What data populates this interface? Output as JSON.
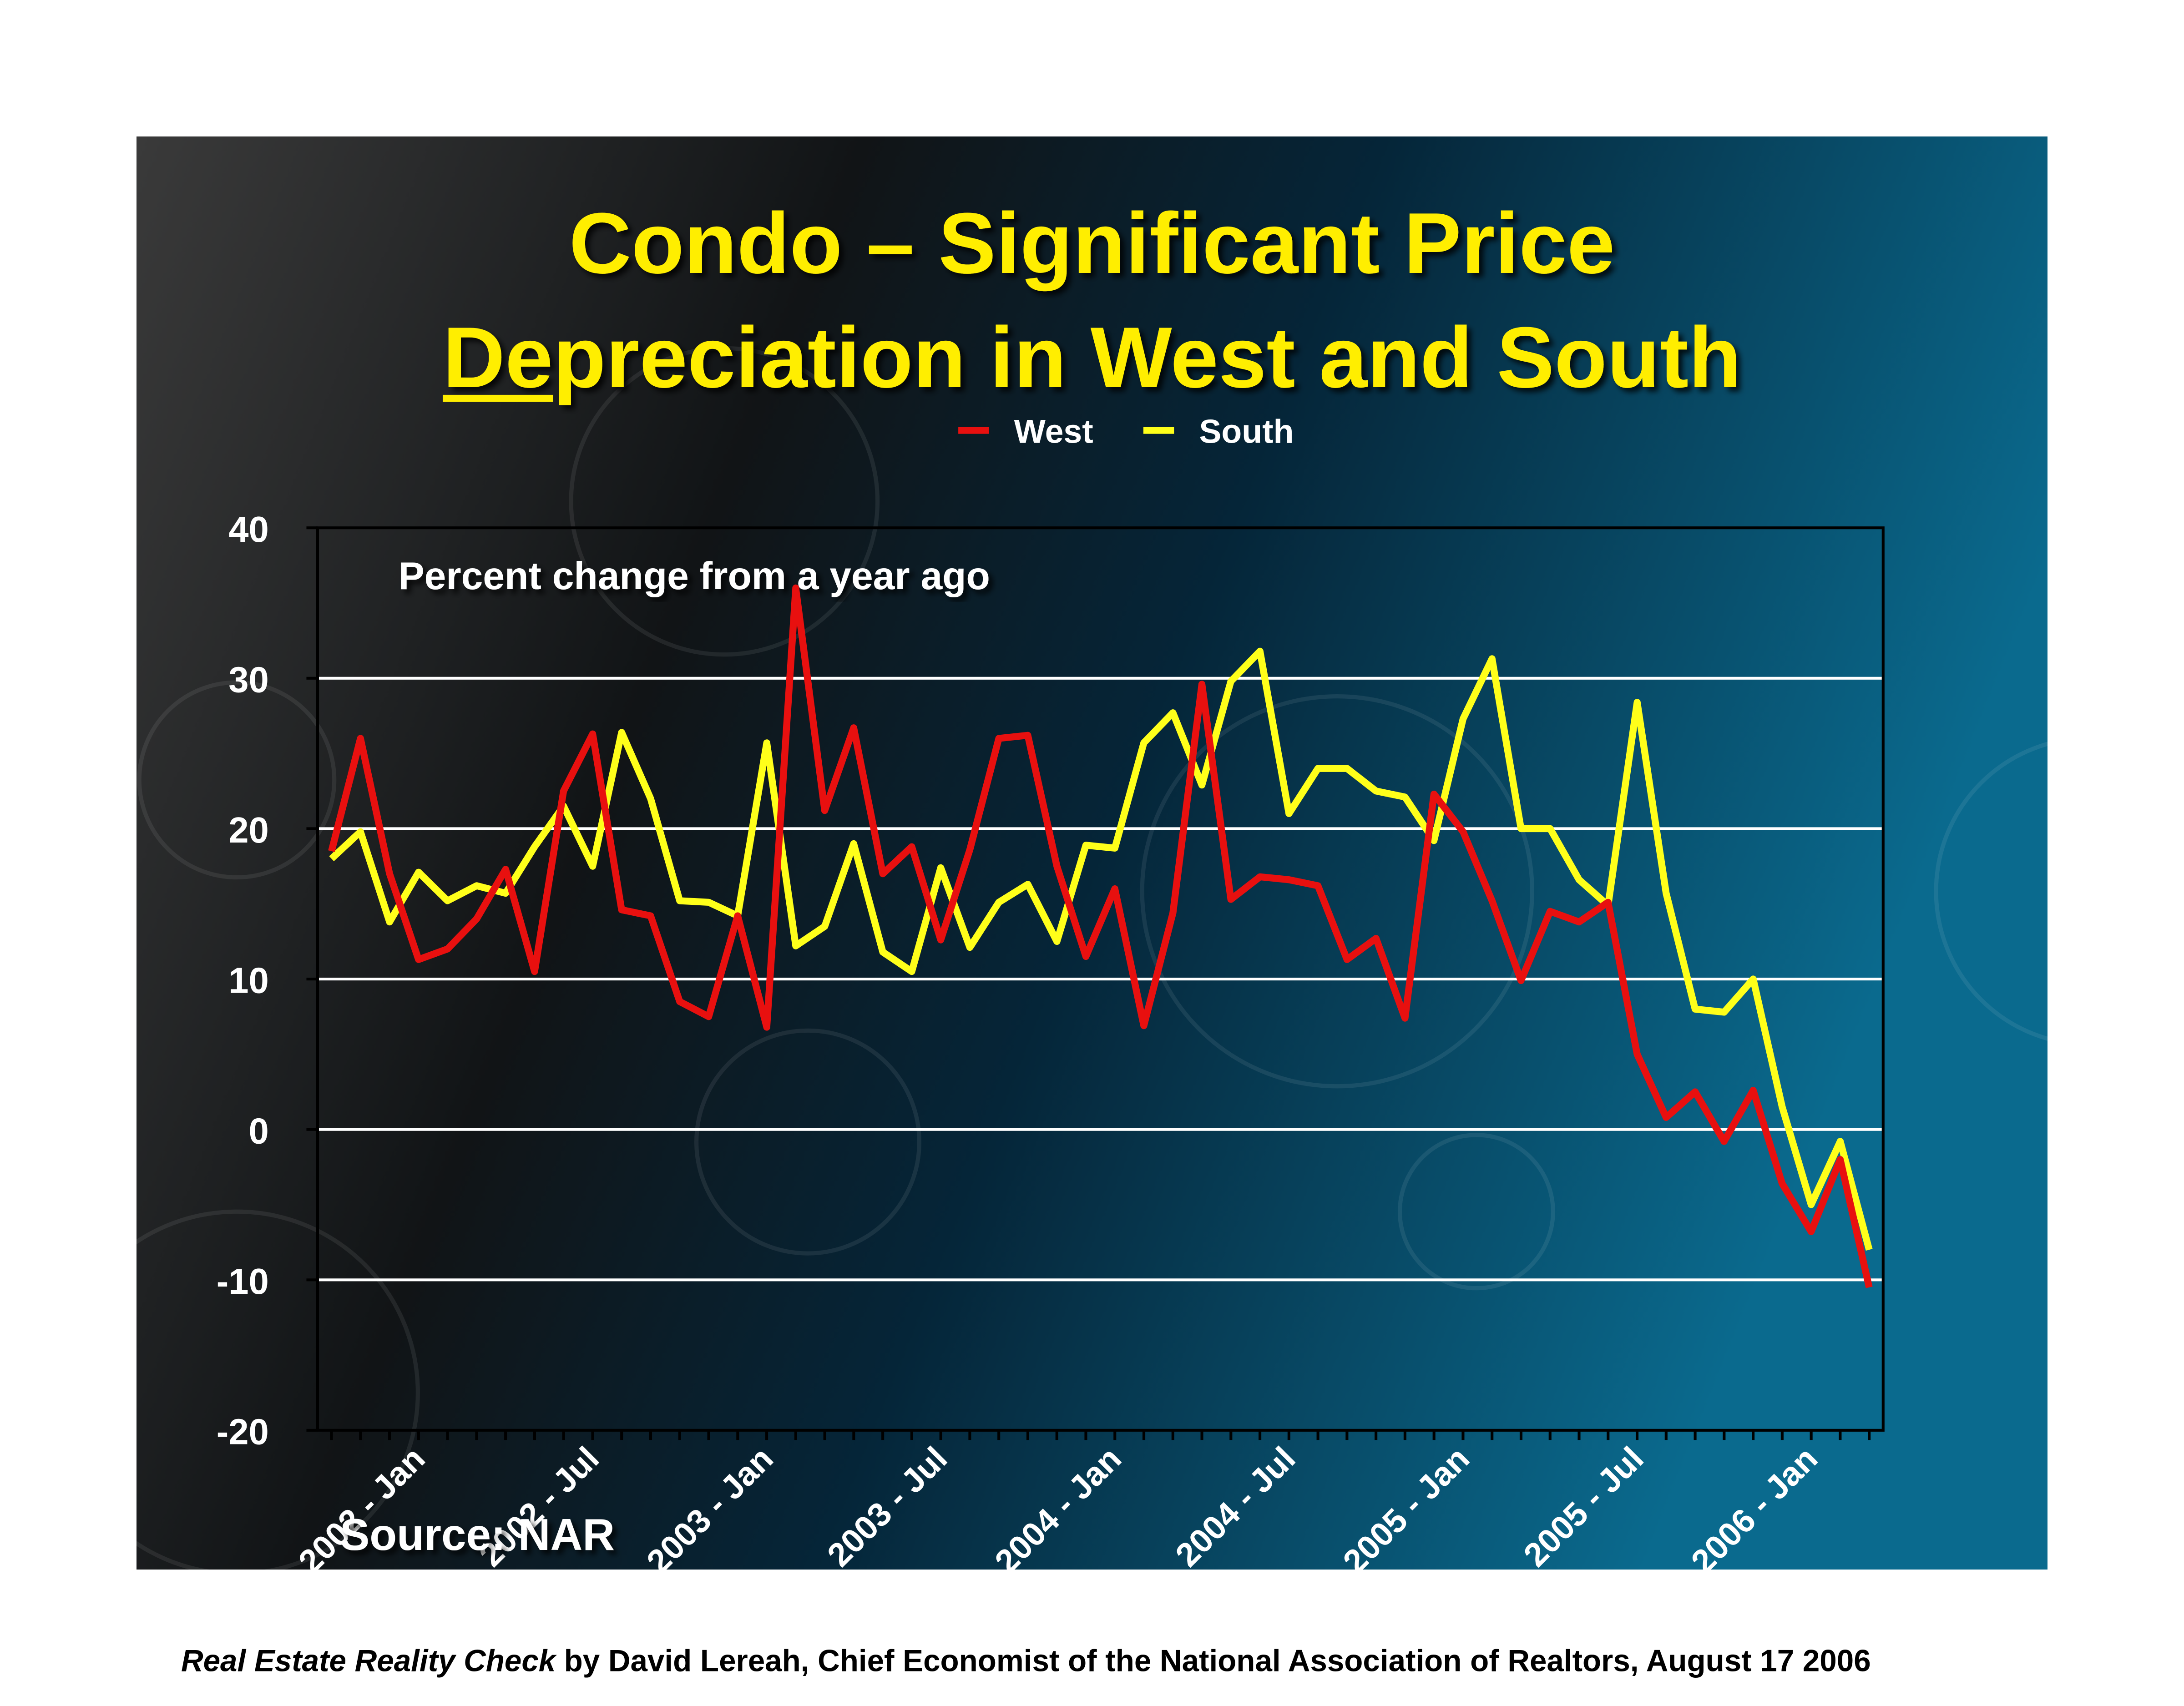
{
  "chart_data": {
    "type": "line",
    "title": [
      "Condo – Significant Price",
      "Depreciation in West and South"
    ],
    "annotation": "Percent change from a year ago",
    "source": "Source: NAR",
    "footer": {
      "italic": "Real Estate Reality Check",
      "text": "by David Lereah, Chief Economist of the National Association of Realtors, August 17 2006"
    },
    "categories": [
      null,
      null,
      null,
      "2002 - Jan",
      null,
      null,
      null,
      null,
      null,
      "2002 - Jul",
      null,
      null,
      null,
      null,
      null,
      "2003 - Jan",
      null,
      null,
      null,
      null,
      null,
      "2003 - Jul",
      null,
      null,
      null,
      null,
      null,
      "2004 - Jan",
      null,
      null,
      null,
      null,
      null,
      "2004 - Jul",
      null,
      null,
      null,
      null,
      null,
      "2005 - Jan",
      null,
      null,
      null,
      null,
      null,
      "2005 - Jul",
      null,
      null,
      null,
      null,
      null,
      "2006 - Jan",
      null,
      null
    ],
    "series": [
      {
        "name": "West",
        "color": "#e8100f",
        "values": [
          18.5,
          26,
          17,
          11.3,
          12,
          14,
          17.3,
          10.5,
          22.5,
          26.3,
          14.6,
          14.2,
          8.5,
          7.5,
          14.2,
          6.8,
          36,
          21.2,
          26.7,
          17,
          18.8,
          12.6,
          18.6,
          26,
          26.2,
          17.5,
          11.5,
          16,
          6.9,
          14.4,
          29.6,
          15.3,
          16.8,
          16.6,
          16.2,
          11.3,
          12.7,
          7.4,
          22.3,
          19.8,
          15.2,
          9.9,
          14.5,
          13.8,
          15.1,
          5,
          0.8,
          2.5,
          -0.8,
          2.6,
          -3.6,
          -6.8,
          -2,
          -10.5
        ]
      },
      {
        "name": "South",
        "color": "#ffff1a",
        "values": [
          18,
          19.8,
          13.8,
          17.1,
          15.2,
          16.2,
          15.7,
          18.8,
          21.5,
          17.5,
          26.4,
          22,
          15.2,
          15.1,
          14.2,
          25.7,
          12.2,
          13.5,
          19,
          11.8,
          10.5,
          17.4,
          12.1,
          15.1,
          16.3,
          12.5,
          18.9,
          18.7,
          25.7,
          27.7,
          22.9,
          29.8,
          31.8,
          21,
          24,
          24,
          22.5,
          22.1,
          19.2,
          27.3,
          31.3,
          20,
          20,
          16.6,
          14.9,
          28.4,
          15.7,
          8,
          7.8,
          10,
          1.5,
          -5,
          -0.8,
          -8
        ]
      }
    ],
    "ylim": [
      -20,
      40
    ],
    "yticks": [
      -20,
      -10,
      0,
      10,
      20,
      30,
      40
    ],
    "grid": true,
    "legend": "top"
  }
}
